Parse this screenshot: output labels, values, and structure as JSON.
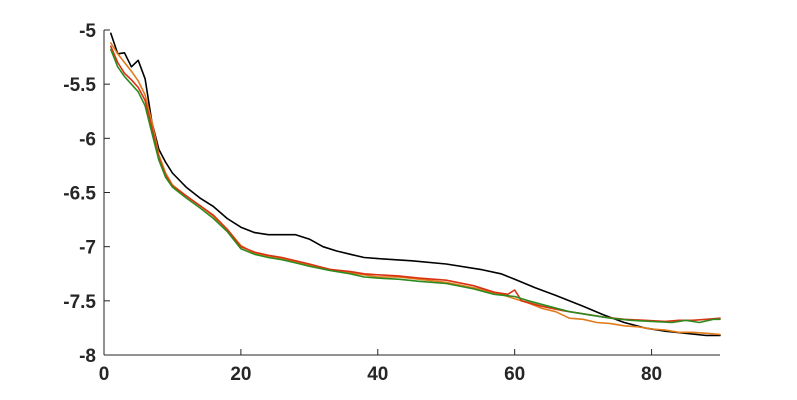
{
  "chart_data": {
    "type": "line",
    "title": "",
    "xlabel": "",
    "ylabel": "",
    "xlim": [
      0,
      90
    ],
    "ylim": [
      -8,
      -5
    ],
    "x_ticks": [
      0,
      20,
      40,
      60,
      80
    ],
    "y_ticks": [
      -5,
      -5.5,
      -6,
      -6.5,
      -7,
      -7.5,
      -8
    ],
    "x_tick_labels": [
      "0",
      "20",
      "40",
      "60",
      "80"
    ],
    "y_tick_labels": [
      "-5",
      "-5.5",
      "-6",
      "-6.5",
      "-7",
      "-7.5",
      "-8"
    ],
    "grid": false,
    "legend": "none",
    "series": [
      {
        "color": "#000000",
        "points": [
          [
            1,
            -5.03
          ],
          [
            2,
            -5.22
          ],
          [
            3,
            -5.21
          ],
          [
            4,
            -5.34
          ],
          [
            5,
            -5.28
          ],
          [
            6,
            -5.45
          ],
          [
            7,
            -5.85
          ],
          [
            8,
            -6.1
          ],
          [
            9,
            -6.22
          ],
          [
            10,
            -6.32
          ],
          [
            12,
            -6.45
          ],
          [
            14,
            -6.55
          ],
          [
            16,
            -6.63
          ],
          [
            18,
            -6.74
          ],
          [
            20,
            -6.82
          ],
          [
            22,
            -6.87
          ],
          [
            24,
            -6.89
          ],
          [
            26,
            -6.89
          ],
          [
            28,
            -6.89
          ],
          [
            30,
            -6.93
          ],
          [
            32,
            -7.0
          ],
          [
            34,
            -7.04
          ],
          [
            36,
            -7.07
          ],
          [
            38,
            -7.1
          ],
          [
            40,
            -7.11
          ],
          [
            45,
            -7.13
          ],
          [
            50,
            -7.16
          ],
          [
            55,
            -7.21
          ],
          [
            58,
            -7.25
          ],
          [
            60,
            -7.3
          ],
          [
            63,
            -7.38
          ],
          [
            66,
            -7.45
          ],
          [
            70,
            -7.55
          ],
          [
            73,
            -7.63
          ],
          [
            76,
            -7.7
          ],
          [
            79,
            -7.75
          ],
          [
            82,
            -7.78
          ],
          [
            85,
            -7.8
          ],
          [
            88,
            -7.82
          ],
          [
            90,
            -7.82
          ]
        ]
      },
      {
        "color": "#e07b1a",
        "points": [
          [
            1,
            -5.12
          ],
          [
            2,
            -5.22
          ],
          [
            3,
            -5.3
          ],
          [
            4,
            -5.38
          ],
          [
            5,
            -5.47
          ],
          [
            6,
            -5.6
          ],
          [
            7,
            -5.85
          ],
          [
            8,
            -6.15
          ],
          [
            9,
            -6.32
          ],
          [
            10,
            -6.43
          ],
          [
            12,
            -6.53
          ],
          [
            14,
            -6.62
          ],
          [
            16,
            -6.72
          ],
          [
            18,
            -6.84
          ],
          [
            20,
            -6.99
          ],
          [
            22,
            -7.06
          ],
          [
            24,
            -7.09
          ],
          [
            26,
            -7.11
          ],
          [
            28,
            -7.14
          ],
          [
            30,
            -7.17
          ],
          [
            33,
            -7.21
          ],
          [
            36,
            -7.24
          ],
          [
            38,
            -7.26
          ],
          [
            40,
            -7.28
          ],
          [
            43,
            -7.28
          ],
          [
            46,
            -7.3
          ],
          [
            50,
            -7.33
          ],
          [
            54,
            -7.38
          ],
          [
            58,
            -7.44
          ],
          [
            60,
            -7.48
          ],
          [
            62,
            -7.52
          ],
          [
            64,
            -7.57
          ],
          [
            66,
            -7.6
          ],
          [
            68,
            -7.66
          ],
          [
            70,
            -7.67
          ],
          [
            72,
            -7.7
          ],
          [
            74,
            -7.71
          ],
          [
            76,
            -7.73
          ],
          [
            78,
            -7.74
          ],
          [
            80,
            -7.76
          ],
          [
            82,
            -7.77
          ],
          [
            84,
            -7.79
          ],
          [
            86,
            -7.79
          ],
          [
            88,
            -7.8
          ],
          [
            90,
            -7.81
          ]
        ]
      },
      {
        "color": "#d93212",
        "points": [
          [
            1,
            -5.15
          ],
          [
            2,
            -5.3
          ],
          [
            3,
            -5.4
          ],
          [
            4,
            -5.46
          ],
          [
            5,
            -5.53
          ],
          [
            6,
            -5.65
          ],
          [
            7,
            -5.9
          ],
          [
            8,
            -6.18
          ],
          [
            9,
            -6.34
          ],
          [
            10,
            -6.44
          ],
          [
            12,
            -6.53
          ],
          [
            14,
            -6.62
          ],
          [
            16,
            -6.71
          ],
          [
            18,
            -6.84
          ],
          [
            20,
            -7.0
          ],
          [
            22,
            -7.05
          ],
          [
            24,
            -7.08
          ],
          [
            26,
            -7.1
          ],
          [
            28,
            -7.13
          ],
          [
            30,
            -7.16
          ],
          [
            33,
            -7.21
          ],
          [
            36,
            -7.23
          ],
          [
            38,
            -7.25
          ],
          [
            40,
            -7.26
          ],
          [
            43,
            -7.27
          ],
          [
            46,
            -7.29
          ],
          [
            50,
            -7.31
          ],
          [
            54,
            -7.36
          ],
          [
            57,
            -7.42
          ],
          [
            59,
            -7.44
          ],
          [
            60,
            -7.4
          ],
          [
            61,
            -7.5
          ],
          [
            64,
            -7.55
          ],
          [
            67,
            -7.59
          ],
          [
            70,
            -7.62
          ],
          [
            73,
            -7.65
          ],
          [
            76,
            -7.67
          ],
          [
            79,
            -7.68
          ],
          [
            82,
            -7.69
          ],
          [
            84,
            -7.68
          ],
          [
            86,
            -7.68
          ],
          [
            88,
            -7.67
          ],
          [
            90,
            -7.66
          ]
        ]
      },
      {
        "color": "#2e8a1e",
        "points": [
          [
            1,
            -5.18
          ],
          [
            2,
            -5.34
          ],
          [
            3,
            -5.43
          ],
          [
            4,
            -5.5
          ],
          [
            5,
            -5.57
          ],
          [
            6,
            -5.7
          ],
          [
            7,
            -5.95
          ],
          [
            8,
            -6.2
          ],
          [
            9,
            -6.36
          ],
          [
            10,
            -6.45
          ],
          [
            12,
            -6.55
          ],
          [
            14,
            -6.64
          ],
          [
            16,
            -6.74
          ],
          [
            18,
            -6.86
          ],
          [
            20,
            -7.02
          ],
          [
            22,
            -7.07
          ],
          [
            24,
            -7.1
          ],
          [
            26,
            -7.12
          ],
          [
            28,
            -7.15
          ],
          [
            30,
            -7.18
          ],
          [
            33,
            -7.22
          ],
          [
            36,
            -7.25
          ],
          [
            38,
            -7.28
          ],
          [
            40,
            -7.29
          ],
          [
            43,
            -7.3
          ],
          [
            46,
            -7.32
          ],
          [
            50,
            -7.34
          ],
          [
            54,
            -7.39
          ],
          [
            57,
            -7.44
          ],
          [
            60,
            -7.46
          ],
          [
            62,
            -7.5
          ],
          [
            65,
            -7.55
          ],
          [
            68,
            -7.6
          ],
          [
            71,
            -7.63
          ],
          [
            74,
            -7.66
          ],
          [
            77,
            -7.68
          ],
          [
            80,
            -7.69
          ],
          [
            83,
            -7.7
          ],
          [
            85,
            -7.68
          ],
          [
            87,
            -7.7
          ],
          [
            89,
            -7.67
          ],
          [
            90,
            -7.67
          ]
        ]
      }
    ]
  }
}
